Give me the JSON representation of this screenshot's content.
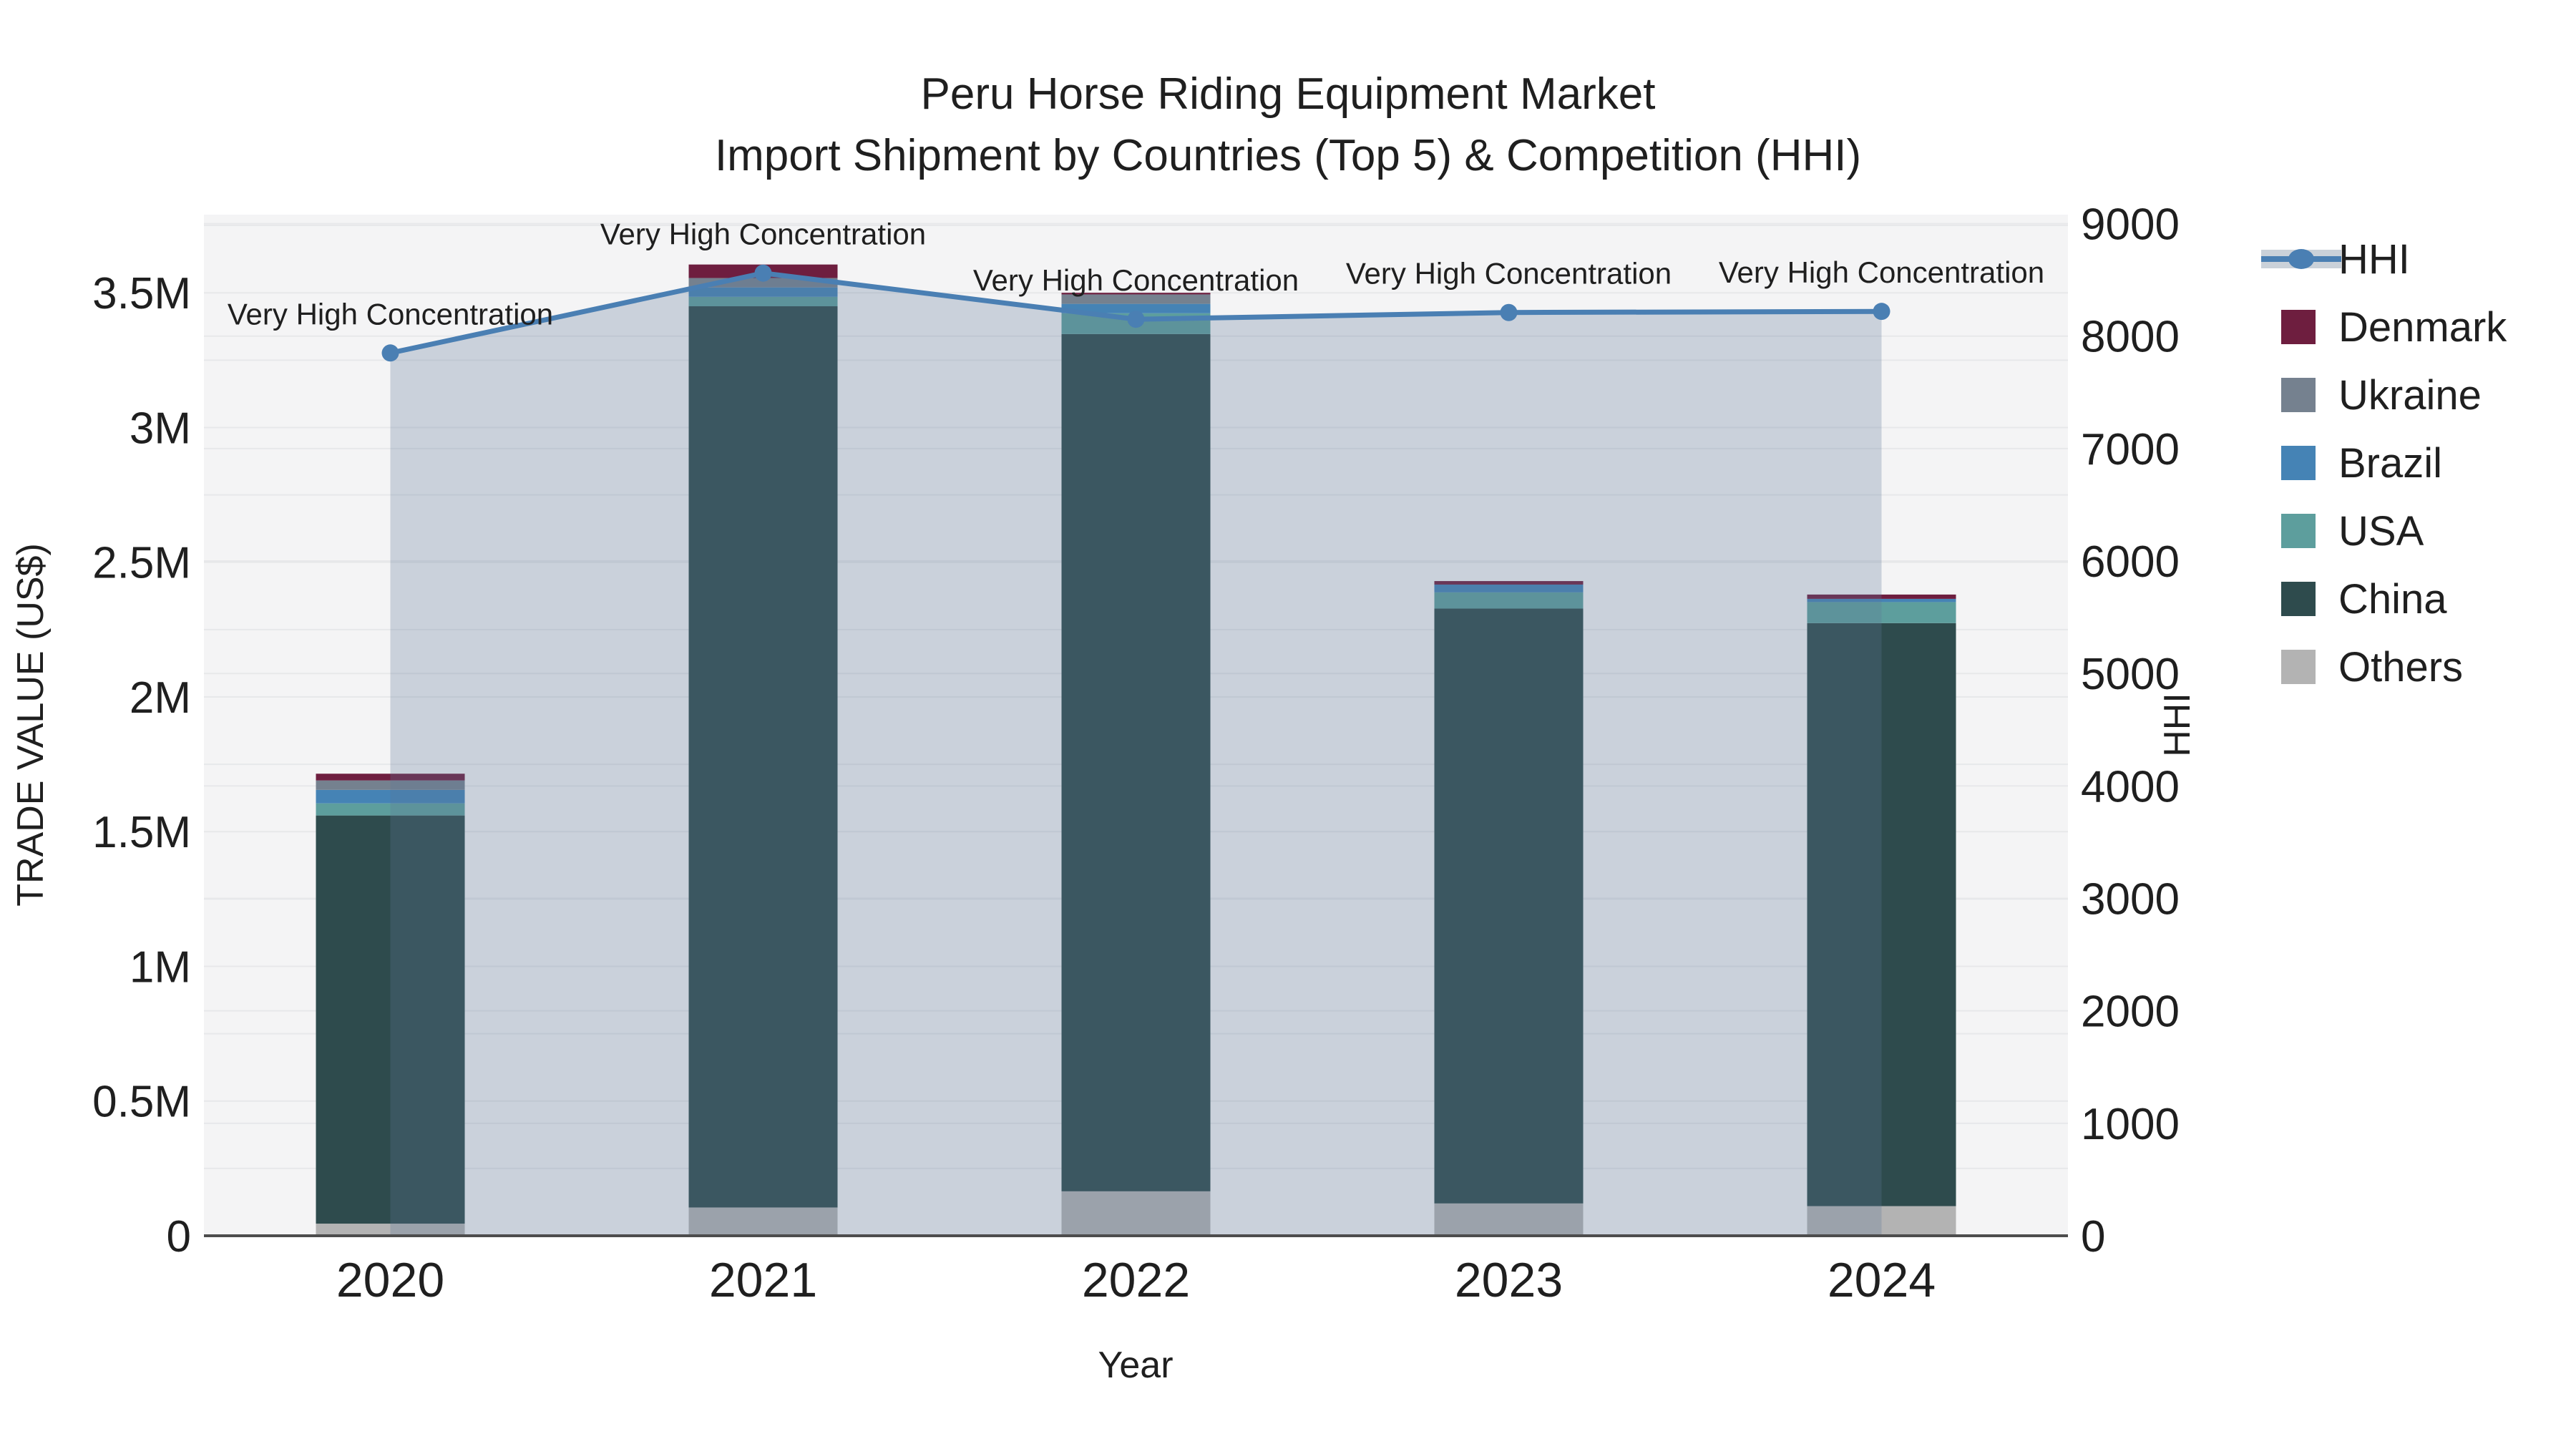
{
  "title": "Peru Horse Riding Equipment Market",
  "subtitle": "Import Shipment by Countries (Top 5) & Competition (HHI)",
  "annotation_text": "Very High Concentration",
  "axes": {
    "x_label": "Year",
    "y_left_label": "TRADE VALUE (US$)",
    "y_right_label": "HHI",
    "y_left_ticks": [
      {
        "label": "0",
        "value": 0
      },
      {
        "label": "0.5M",
        "value": 500000
      },
      {
        "label": "1M",
        "value": 1000000
      },
      {
        "label": "1.5M",
        "value": 1500000
      },
      {
        "label": "2M",
        "value": 2000000
      },
      {
        "label": "2.5M",
        "value": 2500000
      },
      {
        "label": "3M",
        "value": 3000000
      },
      {
        "label": "3.5M",
        "value": 3500000
      }
    ],
    "y_right_ticks": [
      {
        "label": "0",
        "value": 0
      },
      {
        "label": "1000",
        "value": 1000
      },
      {
        "label": "2000",
        "value": 2000
      },
      {
        "label": "3000",
        "value": 3000
      },
      {
        "label": "4000",
        "value": 4000
      },
      {
        "label": "5000",
        "value": 5000
      },
      {
        "label": "6000",
        "value": 6000
      },
      {
        "label": "7000",
        "value": 7000
      },
      {
        "label": "8000",
        "value": 8000
      },
      {
        "label": "9000",
        "value": 9000
      }
    ],
    "y_left_range": [
      0,
      3790000
    ],
    "y_right_range": [
      0,
      9080
    ]
  },
  "chart_data": {
    "type": "bar",
    "subtype": "stacked-bar-with-line",
    "categories": [
      "2020",
      "2021",
      "2022",
      "2023",
      "2024"
    ],
    "value_unit": "US$",
    "series": [
      {
        "name": "Others",
        "color": "#b3b3b3",
        "values": [
          45000,
          105000,
          165000,
          120000,
          110000
        ]
      },
      {
        "name": "China",
        "color": "#2e4b4d",
        "values": [
          1515000,
          3345000,
          3182000,
          2208000,
          2164000
        ]
      },
      {
        "name": "USA",
        "color": "#5d9e9d",
        "values": [
          45000,
          35000,
          77000,
          60000,
          78000
        ]
      },
      {
        "name": "Brazil",
        "color": "#4583b5",
        "values": [
          50000,
          35000,
          35000,
          29000,
          12000
        ]
      },
      {
        "name": "Ukraine",
        "color": "#75818f",
        "values": [
          35000,
          35000,
          35000,
          0,
          0
        ]
      },
      {
        "name": "Denmark",
        "color": "#6e1e3f",
        "values": [
          25000,
          50000,
          6000,
          13000,
          16000
        ]
      }
    ],
    "bar_totals": [
      1715000,
      3605000,
      3500000,
      2430000,
      2380000
    ],
    "line_series": {
      "name": "HHI",
      "axis": "right",
      "color": "#4a7fb3",
      "fill": "rgba(94,120,150,0.28)",
      "values": [
        7850,
        8560,
        8150,
        8210,
        8220
      ]
    },
    "point_annotations": [
      "Very High Concentration",
      "Very High Concentration",
      "Very High Concentration",
      "Very High Concentration",
      "Very High Concentration"
    ],
    "title": "Peru Horse Riding Equipment Market",
    "xlabel": "Year",
    "ylabel_left": "TRADE VALUE (US$)",
    "ylabel_right": "HHI",
    "legend_position": "right",
    "grid": true
  },
  "legend": [
    {
      "label": "HHI",
      "type": "line",
      "color": "#4a7fb3"
    },
    {
      "label": "Denmark",
      "type": "swatch",
      "color": "#6e1e3f"
    },
    {
      "label": "Ukraine",
      "type": "swatch",
      "color": "#75818f"
    },
    {
      "label": "Brazil",
      "type": "swatch",
      "color": "#4583b5"
    },
    {
      "label": "USA",
      "type": "swatch",
      "color": "#5d9e9d"
    },
    {
      "label": "China",
      "type": "swatch",
      "color": "#2e4b4d"
    },
    {
      "label": "Others",
      "type": "swatch",
      "color": "#b3b3b3"
    }
  ],
  "colors": {
    "figure_bg": "#ffffff",
    "plot_bg": "#f4f4f5",
    "grid": "#e7e8ea",
    "axis_line": "#4d4d4d",
    "text": "#1f1f1f",
    "hhi_line": "#4a7fb3",
    "hhi_fill": "rgba(94,120,150,0.28)",
    "hhi_legend_band": "#cad1d9"
  }
}
